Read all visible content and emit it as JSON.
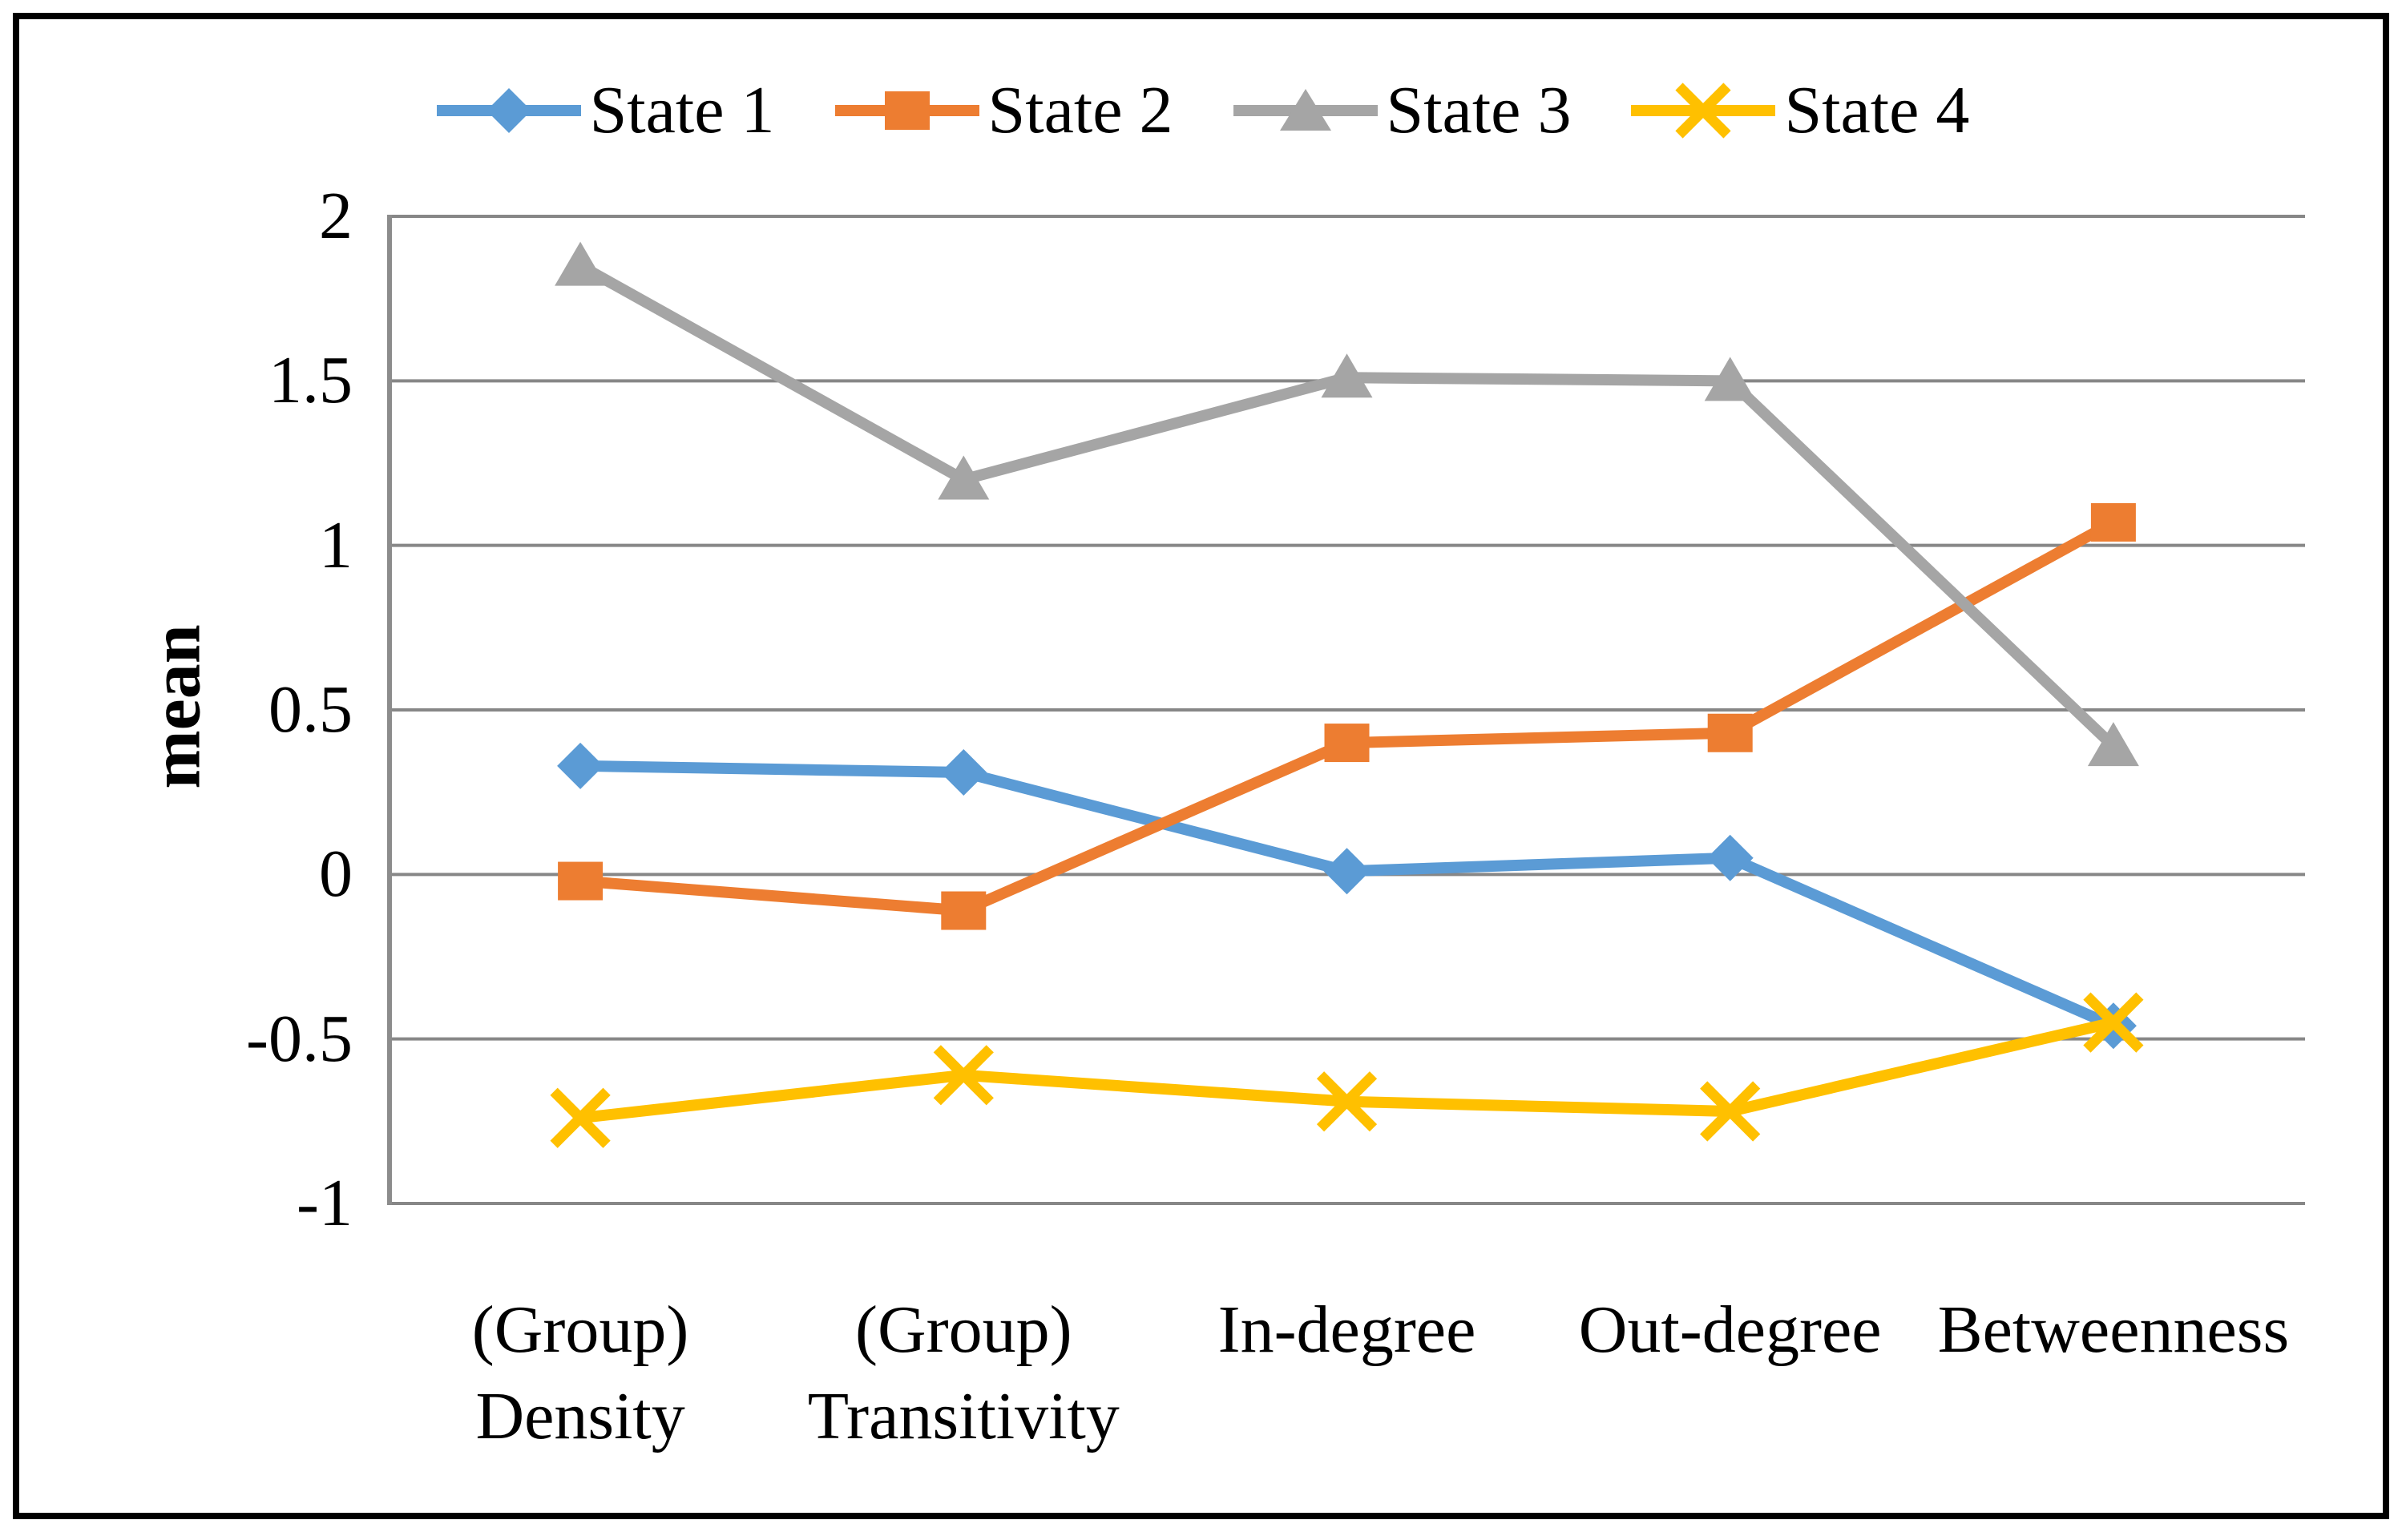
{
  "chart_data": {
    "type": "line",
    "categories": [
      "(Group)\nDensity",
      "(Group)\nTransitivity",
      "In-degree",
      "Out-degree",
      "Betweenness"
    ],
    "series": [
      {
        "name": "State 1",
        "color": "#5B9BD5",
        "marker": "diamond",
        "values": [
          0.33,
          0.31,
          0.01,
          0.05,
          -0.46
        ]
      },
      {
        "name": "State 2",
        "color": "#ED7D31",
        "marker": "square",
        "values": [
          -0.02,
          -0.11,
          0.4,
          0.43,
          1.07
        ]
      },
      {
        "name": "State 3",
        "color": "#A5A5A5",
        "marker": "triangle",
        "values": [
          1.85,
          1.2,
          1.51,
          1.5,
          0.39
        ]
      },
      {
        "name": "State 4",
        "color": "#FFC000",
        "marker": "x",
        "values": [
          -0.74,
          -0.61,
          -0.69,
          -0.72,
          -0.45
        ]
      }
    ],
    "title": "",
    "xlabel": "",
    "ylabel": "mean",
    "ylim": [
      -1,
      2
    ],
    "yticks": [
      2,
      1.5,
      1,
      0.5,
      0,
      -0.5,
      -1
    ],
    "ytick_labels": [
      "2",
      "1.5",
      "1",
      "0.5",
      "0",
      "-0.5",
      "-1"
    ],
    "grid": "horizontal",
    "legend_position": "top"
  },
  "colors": {
    "gridline": "#878787",
    "axis_line": "#8c8c8c",
    "frame_border": "#000000",
    "text": "#000000"
  }
}
